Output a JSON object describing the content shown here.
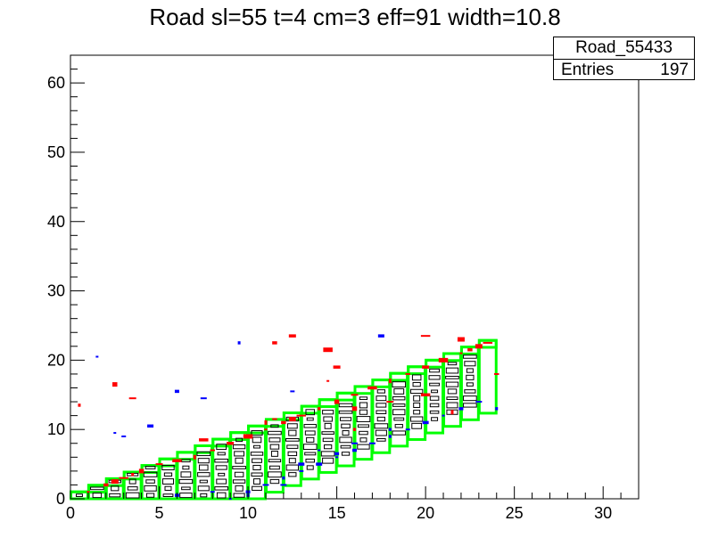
{
  "title": "Road sl=55 t=4 cm=3 eff=91 width=10.8",
  "stats": {
    "name": "Road_55433",
    "entries_label": "Entries",
    "entries_value": "197"
  },
  "chart_data": {
    "type": "heatmap",
    "title": "Road sl=55 t=4 cm=3 eff=91 width=10.8",
    "xlabel": "",
    "ylabel": "",
    "xlim": [
      0,
      32
    ],
    "ylim": [
      0,
      64
    ],
    "x_ticks": [
      "0",
      "5",
      "10",
      "15",
      "20",
      "25",
      "30"
    ],
    "y_ticks": [
      "0",
      "10",
      "20",
      "30",
      "40",
      "50",
      "60"
    ],
    "road_box_color": "#00ff00",
    "black_count": 197,
    "red_points": [
      [
        1,
        1
      ],
      [
        2,
        2
      ],
      [
        2.5,
        2.5
      ],
      [
        3,
        3
      ],
      [
        3.5,
        3.5
      ],
      [
        4,
        4
      ],
      [
        5,
        5
      ],
      [
        6,
        5.5
      ],
      [
        7,
        6
      ],
      [
        8,
        7
      ],
      [
        9,
        8
      ],
      [
        10,
        9
      ],
      [
        11,
        10
      ],
      [
        12,
        11
      ],
      [
        12.5,
        11.5
      ],
      [
        13,
        12
      ],
      [
        14,
        13
      ],
      [
        15,
        14
      ],
      [
        16,
        15
      ],
      [
        17,
        16
      ],
      [
        18,
        17
      ],
      [
        19,
        18
      ],
      [
        20,
        19
      ],
      [
        21,
        20
      ],
      [
        22,
        21
      ],
      [
        22.5,
        21.5
      ],
      [
        23,
        22
      ],
      [
        23.5,
        22.5
      ],
      [
        0.5,
        13.5
      ],
      [
        2.5,
        16.5
      ],
      [
        3.5,
        14.5
      ],
      [
        7.5,
        8.5
      ],
      [
        11,
        11
      ],
      [
        11.5,
        11.5
      ],
      [
        12.5,
        23.5
      ],
      [
        14.5,
        21.5
      ],
      [
        14.5,
        17
      ],
      [
        11.5,
        22.5
      ],
      [
        22,
        23
      ],
      [
        20,
        23.5
      ],
      [
        16,
        10
      ],
      [
        16,
        13
      ],
      [
        18,
        14
      ],
      [
        20,
        15
      ],
      [
        21.5,
        12.5
      ],
      [
        24,
        18
      ],
      [
        15,
        19
      ]
    ],
    "blue_points": [
      [
        1.5,
        20.5
      ],
      [
        6,
        15.5
      ],
      [
        7.5,
        14.5
      ],
      [
        9.5,
        22.5
      ],
      [
        12.5,
        15.5
      ],
      [
        17.5,
        23.5
      ],
      [
        9,
        0
      ],
      [
        10,
        1
      ],
      [
        11,
        2
      ],
      [
        12,
        3
      ],
      [
        13,
        4
      ],
      [
        14,
        5
      ],
      [
        15,
        6
      ],
      [
        16,
        7
      ],
      [
        17,
        8
      ],
      [
        18,
        9
      ],
      [
        19,
        10
      ],
      [
        20,
        11
      ],
      [
        21,
        12
      ],
      [
        22,
        13
      ],
      [
        23,
        14
      ],
      [
        24,
        13
      ],
      [
        8,
        1
      ],
      [
        13,
        5
      ],
      [
        14,
        7
      ],
      [
        15,
        6.5
      ],
      [
        16,
        8
      ],
      [
        18,
        10
      ],
      [
        3,
        9
      ],
      [
        4.5,
        10.5
      ],
      [
        2.5,
        9.5
      ],
      [
        6,
        0.5
      ],
      [
        12,
        2
      ],
      [
        10,
        0.5
      ]
    ],
    "black_cells": [
      [
        1,
        0.5
      ],
      [
        2,
        0.5
      ],
      [
        3,
        0.5
      ],
      [
        4,
        0.5
      ],
      [
        5,
        0.5
      ],
      [
        6,
        0.5
      ],
      [
        7,
        0.5
      ],
      [
        8,
        0.5
      ],
      [
        9,
        0.5
      ],
      [
        10,
        0.5
      ],
      [
        2,
        1.5
      ],
      [
        3,
        1.5
      ],
      [
        4,
        1.5
      ],
      [
        5,
        1.5
      ],
      [
        6,
        1.5
      ],
      [
        7,
        1.5
      ],
      [
        8,
        1.5
      ],
      [
        9,
        1.5
      ],
      [
        10,
        1.5
      ],
      [
        11,
        1.5
      ],
      [
        3,
        2.5
      ],
      [
        4,
        2.5
      ],
      [
        5,
        2.5
      ],
      [
        6,
        2.5
      ],
      [
        7,
        2.5
      ],
      [
        8,
        2.5
      ],
      [
        9,
        2.5
      ],
      [
        10,
        2.5
      ],
      [
        11,
        2.5
      ],
      [
        12,
        2.5
      ],
      [
        4,
        3.5
      ],
      [
        5,
        3.5
      ],
      [
        6,
        3.5
      ],
      [
        7,
        3.5
      ],
      [
        8,
        3.5
      ],
      [
        9,
        3.5
      ],
      [
        10,
        3.5
      ],
      [
        11,
        3.5
      ],
      [
        12,
        3.5
      ],
      [
        13,
        3.5
      ],
      [
        5,
        4.5
      ],
      [
        6,
        4.5
      ],
      [
        7,
        4.5
      ],
      [
        8,
        4.5
      ],
      [
        9,
        4.5
      ],
      [
        10,
        4.5
      ],
      [
        11,
        4.5
      ],
      [
        12,
        4.5
      ],
      [
        13,
        4.5
      ],
      [
        14,
        4.5
      ],
      [
        7,
        5.5
      ],
      [
        8,
        5.5
      ],
      [
        9,
        5.5
      ],
      [
        10,
        5.5
      ],
      [
        11,
        5.5
      ],
      [
        12,
        5.5
      ],
      [
        13,
        5.5
      ],
      [
        14,
        5.5
      ],
      [
        15,
        5.5
      ],
      [
        8,
        6.5
      ],
      [
        9,
        6.5
      ],
      [
        10,
        6.5
      ],
      [
        11,
        6.5
      ],
      [
        12,
        6.5
      ],
      [
        13,
        6.5
      ],
      [
        14,
        6.5
      ],
      [
        15,
        6.5
      ],
      [
        16,
        6.5
      ],
      [
        9,
        7.5
      ],
      [
        10,
        7.5
      ],
      [
        11,
        7.5
      ],
      [
        12,
        7.5
      ],
      [
        13,
        7.5
      ],
      [
        14,
        7.5
      ],
      [
        15,
        7.5
      ],
      [
        16,
        7.5
      ],
      [
        17,
        7.5
      ],
      [
        10,
        8.5
      ],
      [
        11,
        8.5
      ],
      [
        12,
        8.5
      ],
      [
        13,
        8.5
      ],
      [
        14,
        8.5
      ],
      [
        15,
        8.5
      ],
      [
        16,
        8.5
      ],
      [
        17,
        8.5
      ],
      [
        18,
        8.5
      ],
      [
        11,
        9.5
      ],
      [
        12,
        9.5
      ],
      [
        13,
        9.5
      ],
      [
        14,
        9.5
      ],
      [
        15,
        9.5
      ],
      [
        16,
        9.5
      ],
      [
        17,
        9.5
      ],
      [
        18,
        9.5
      ],
      [
        19,
        9.5
      ],
      [
        12,
        10.5
      ],
      [
        13,
        10.5
      ],
      [
        14,
        10.5
      ],
      [
        15,
        10.5
      ],
      [
        16,
        10.5
      ],
      [
        17,
        10.5
      ],
      [
        18,
        10.5
      ],
      [
        19,
        10.5
      ],
      [
        20,
        10.5
      ],
      [
        13,
        11.5
      ],
      [
        14,
        11.5
      ],
      [
        15,
        11.5
      ],
      [
        16,
        11.5
      ],
      [
        17,
        11.5
      ],
      [
        18,
        11.5
      ],
      [
        19,
        11.5
      ],
      [
        20,
        11.5
      ],
      [
        21,
        11.5
      ],
      [
        14,
        12.5
      ],
      [
        15,
        12.5
      ],
      [
        16,
        12.5
      ],
      [
        17,
        12.5
      ],
      [
        18,
        12.5
      ],
      [
        19,
        12.5
      ],
      [
        20,
        12.5
      ],
      [
        21,
        12.5
      ],
      [
        22,
        12.5
      ],
      [
        16,
        13.5
      ],
      [
        17,
        13.5
      ],
      [
        18,
        13.5
      ],
      [
        19,
        13.5
      ],
      [
        20,
        13.5
      ],
      [
        21,
        13.5
      ],
      [
        22,
        13.5
      ],
      [
        23,
        13.5
      ],
      [
        17,
        14.5
      ],
      [
        18,
        14.5
      ],
      [
        19,
        14.5
      ],
      [
        20,
        14.5
      ],
      [
        21,
        14.5
      ],
      [
        22,
        14.5
      ],
      [
        23,
        14.5
      ],
      [
        18,
        15.5
      ],
      [
        19,
        15.5
      ],
      [
        20,
        15.5
      ],
      [
        21,
        15.5
      ],
      [
        22,
        15.5
      ],
      [
        23,
        15.5
      ],
      [
        19,
        16.5
      ],
      [
        20,
        16.5
      ],
      [
        21,
        16.5
      ],
      [
        22,
        16.5
      ],
      [
        23,
        16.5
      ],
      [
        20,
        17.5
      ],
      [
        21,
        17.5
      ],
      [
        22,
        17.5
      ],
      [
        23,
        17.5
      ],
      [
        21,
        18.5
      ],
      [
        22,
        18.5
      ],
      [
        23,
        18.5
      ],
      [
        22,
        19.5
      ],
      [
        23,
        19.5
      ],
      [
        23,
        20.5
      ]
    ]
  }
}
